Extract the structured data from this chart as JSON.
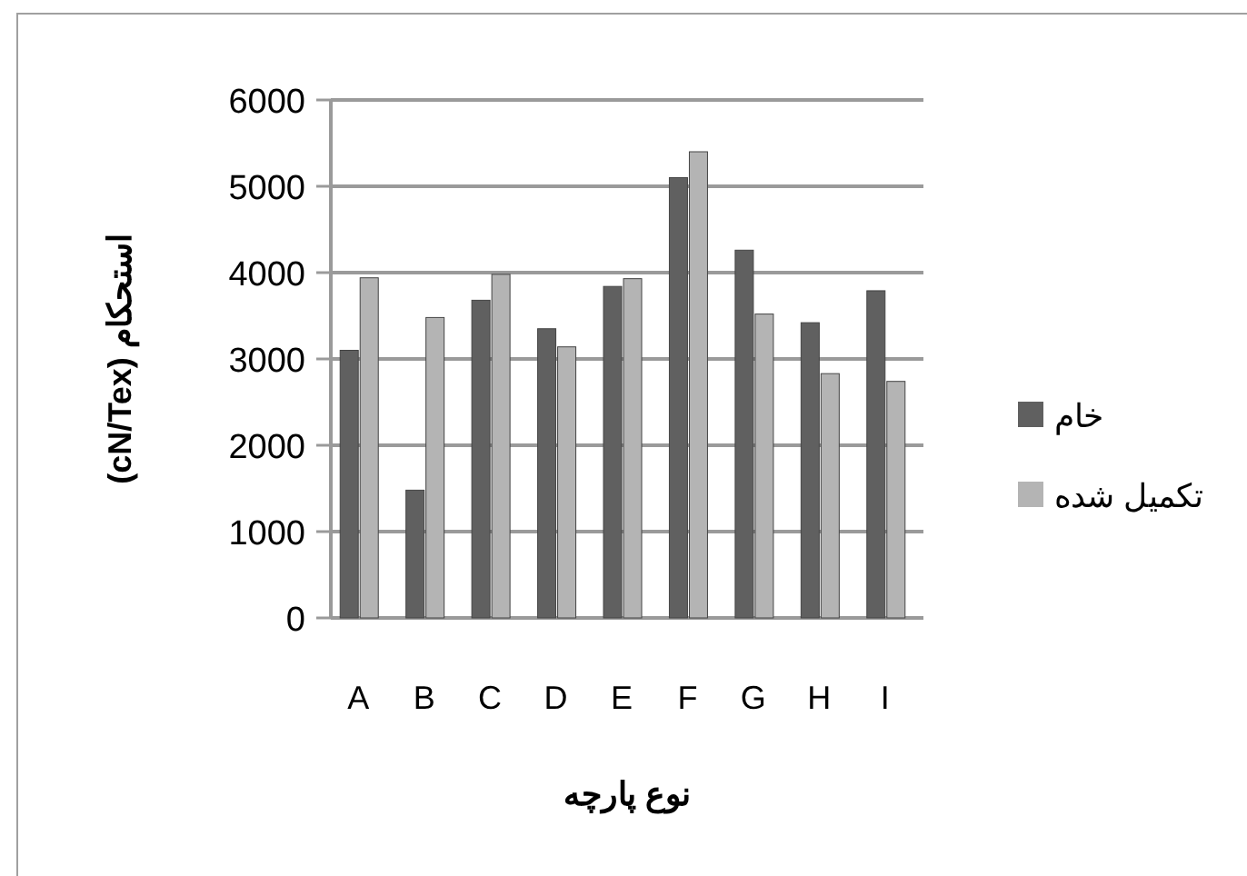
{
  "chart_data": {
    "type": "bar",
    "xlabel": "نوع پارچه",
    "ylabel": "استحکام (cN/Tex)",
    "categories": [
      "A",
      "B",
      "C",
      "D",
      "E",
      "F",
      "G",
      "H",
      "I"
    ],
    "series": [
      {
        "name": "خام",
        "color": "#606060",
        "values": [
          3100,
          1480,
          3680,
          3350,
          3840,
          5100,
          4260,
          3420,
          3790
        ]
      },
      {
        "name": "تکمیل شده",
        "color": "#b4b4b4",
        "values": [
          3940,
          3480,
          3980,
          3140,
          3930,
          5400,
          3520,
          2830,
          2740
        ]
      }
    ],
    "ylim": [
      0,
      6000
    ],
    "yticks": [
      0,
      1000,
      2000,
      3000,
      4000,
      5000,
      6000
    ],
    "grid": "y",
    "legend": "right"
  }
}
